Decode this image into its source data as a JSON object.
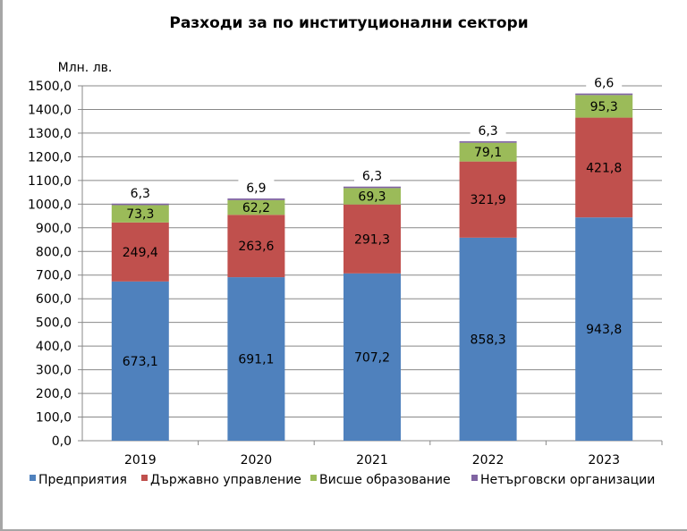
{
  "chart_data": {
    "type": "bar",
    "stacked": true,
    "title": "Разходи за по институционални сектори",
    "ylabel": "Млн. лв.",
    "xlabel": "",
    "ylim": [
      0,
      1500
    ],
    "ytick_step": 100,
    "yticks": [
      "0,0",
      "100,0",
      "200,0",
      "300,0",
      "400,0",
      "500,0",
      "600,0",
      "700,0",
      "800,0",
      "900,0",
      "1000,0",
      "1100,0",
      "1200,0",
      "1300,0",
      "1400,0",
      "1500,0"
    ],
    "grid": true,
    "legend_position": "bottom",
    "categories": [
      "2019",
      "2020",
      "2021",
      "2022",
      "2023"
    ],
    "series": [
      {
        "name": "Предприятия",
        "color": "#4f81bd",
        "values": [
          673.1,
          691.1,
          707.2,
          858.3,
          943.8
        ],
        "labels": [
          "673,1",
          "691,1",
          "707,2",
          "858,3",
          "943,8"
        ]
      },
      {
        "name": "Държавно управление",
        "color": "#c0504d",
        "values": [
          249.4,
          263.6,
          291.3,
          321.9,
          421.8
        ],
        "labels": [
          "249,4",
          "263,6",
          "291,3",
          "321,9",
          "421,8"
        ]
      },
      {
        "name": "Висше образование",
        "color": "#9bbb59",
        "values": [
          73.3,
          62.2,
          69.3,
          79.1,
          95.3
        ],
        "labels": [
          "73,3",
          "62,2",
          "69,3",
          "79,1",
          "95,3"
        ]
      },
      {
        "name": "Нетърговски организации",
        "color": "#8064a2",
        "values": [
          6.3,
          6.9,
          6.3,
          6.3,
          6.6
        ],
        "labels": [
          "6,3",
          "6,9",
          "6,3",
          "6,3",
          "6,6"
        ]
      }
    ]
  }
}
